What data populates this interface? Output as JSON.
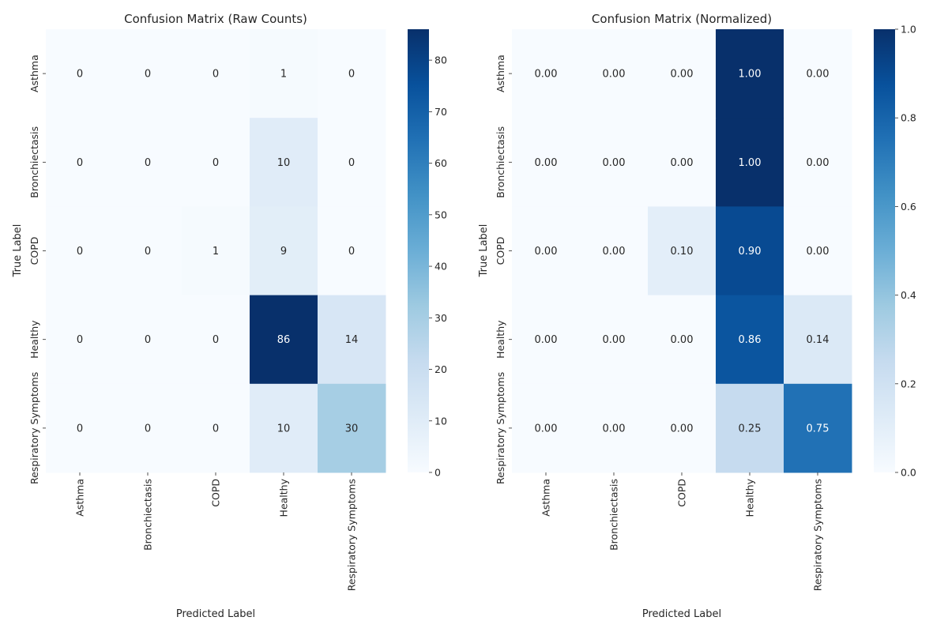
{
  "chart_data": [
    {
      "type": "heatmap",
      "title": "Confusion Matrix (Raw Counts)",
      "xlabel": "Predicted Label",
      "ylabel": "True Label",
      "x_categories": [
        "Asthma",
        "Bronchiectasis",
        "COPD",
        "Healthy",
        "Respiratory Symptoms"
      ],
      "y_categories": [
        "Asthma",
        "Bronchiectasis",
        "COPD",
        "Healthy",
        "Respiratory Symptoms"
      ],
      "values": [
        [
          0,
          0,
          0,
          1,
          0
        ],
        [
          0,
          0,
          0,
          10,
          0
        ],
        [
          0,
          0,
          1,
          9,
          0
        ],
        [
          0,
          0,
          0,
          86,
          14
        ],
        [
          0,
          0,
          0,
          10,
          30
        ]
      ],
      "cell_labels": [
        [
          "0",
          "0",
          "0",
          "1",
          "0"
        ],
        [
          "0",
          "0",
          "0",
          "10",
          "0"
        ],
        [
          "0",
          "0",
          "1",
          "9",
          "0"
        ],
        [
          "0",
          "0",
          "0",
          "86",
          "14"
        ],
        [
          "0",
          "0",
          "0",
          "10",
          "30"
        ]
      ],
      "colormap": "Blues",
      "vmin": 0,
      "vmax": 86,
      "colorbar_ticks": [
        "0",
        "10",
        "20",
        "30",
        "40",
        "50",
        "60",
        "70",
        "80"
      ]
    },
    {
      "type": "heatmap",
      "title": "Confusion Matrix (Normalized)",
      "xlabel": "Predicted Label",
      "ylabel": "True Label",
      "x_categories": [
        "Asthma",
        "Bronchiectasis",
        "COPD",
        "Healthy",
        "Respiratory Symptoms"
      ],
      "y_categories": [
        "Asthma",
        "Bronchiectasis",
        "COPD",
        "Healthy",
        "Respiratory Symptoms"
      ],
      "values": [
        [
          0.0,
          0.0,
          0.0,
          1.0,
          0.0
        ],
        [
          0.0,
          0.0,
          0.0,
          1.0,
          0.0
        ],
        [
          0.0,
          0.0,
          0.1,
          0.9,
          0.0
        ],
        [
          0.0,
          0.0,
          0.0,
          0.86,
          0.14
        ],
        [
          0.0,
          0.0,
          0.0,
          0.25,
          0.75
        ]
      ],
      "cell_labels": [
        [
          "0.00",
          "0.00",
          "0.00",
          "1.00",
          "0.00"
        ],
        [
          "0.00",
          "0.00",
          "0.00",
          "1.00",
          "0.00"
        ],
        [
          "0.00",
          "0.00",
          "0.10",
          "0.90",
          "0.00"
        ],
        [
          "0.00",
          "0.00",
          "0.00",
          "0.86",
          "0.14"
        ],
        [
          "0.00",
          "0.00",
          "0.00",
          "0.25",
          "0.75"
        ]
      ],
      "colormap": "Blues",
      "vmin": 0,
      "vmax": 1,
      "colorbar_ticks": [
        "0.0",
        "0.2",
        "0.4",
        "0.6",
        "0.8",
        "1.0"
      ]
    }
  ]
}
